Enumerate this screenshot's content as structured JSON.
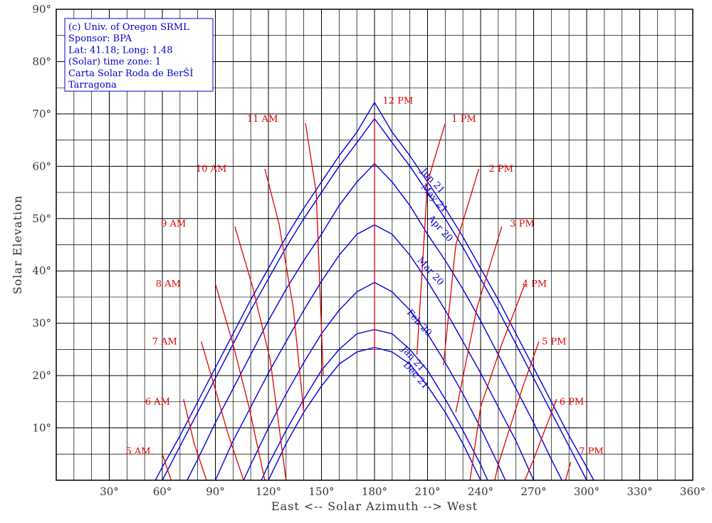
{
  "chart_data": {
    "type": "line",
    "title": "",
    "xlabel": "East <-- Solar Azimuth --> West",
    "ylabel": "Solar Elevation",
    "xlim": [
      0,
      360
    ],
    "ylim": [
      0,
      90
    ],
    "x_ticks": [
      "30°",
      "60°",
      "90°",
      "120°",
      "150°",
      "180°",
      "210°",
      "240°",
      "270°",
      "300°",
      "330°",
      "360°"
    ],
    "y_ticks": [
      "10°",
      "20°",
      "30°",
      "40°",
      "50°",
      "60°",
      "70°",
      "80°",
      "90°"
    ],
    "grid": true,
    "info_box": [
      "(c) Univ. of Oregon SRML",
      "Sponsor: BPA",
      "Lat: 41.18; Long: 1.48",
      "(Solar) time zone: 1",
      "Carta Solar Roda de BerŠÌ",
      "Tarragona"
    ],
    "colors": {
      "date_curves": "#0000dd",
      "hour_curves": "#e00000",
      "grid": "#000000"
    },
    "date_series": [
      {
        "name": "Jun 21",
        "label_at": [
          206,
          59
        ],
        "label_angle": 48,
        "x": [
          56,
          60,
          70,
          80,
          90,
          100,
          110,
          120,
          130,
          140,
          150,
          160,
          170,
          180,
          190,
          200,
          210,
          220,
          230,
          240,
          250,
          260,
          270,
          280,
          290,
          300,
          304
        ],
        "y": [
          0,
          2.5,
          8.5,
          15,
          21.5,
          28,
          34.5,
          40.5,
          46.5,
          52,
          57,
          62,
          66.5,
          72.2,
          66.5,
          62,
          57,
          52,
          46.5,
          40.5,
          34.5,
          28,
          21.5,
          15,
          8.5,
          2.5,
          0
        ]
      },
      {
        "name": "May 21",
        "label_at": [
          206,
          56
        ],
        "label_angle": 48,
        "x": [
          60,
          70,
          80,
          90,
          100,
          110,
          120,
          130,
          140,
          150,
          160,
          170,
          180,
          190,
          200,
          210,
          220,
          230,
          240,
          250,
          260,
          270,
          280,
          290,
          300
        ],
        "y": [
          0,
          6.5,
          13,
          19.5,
          26,
          32.5,
          38.5,
          44.5,
          50,
          55,
          60,
          64.5,
          69.1,
          64.5,
          60,
          55,
          50,
          44.5,
          38.5,
          32.5,
          26,
          19.5,
          13,
          6.5,
          0
        ]
      },
      {
        "name": "Apr 20",
        "label_at": [
          210,
          50
        ],
        "label_angle": 48,
        "x": [
          74,
          80,
          90,
          100,
          110,
          120,
          130,
          140,
          150,
          160,
          170,
          180,
          190,
          200,
          210,
          220,
          230,
          240,
          250,
          260,
          270,
          280,
          286
        ],
        "y": [
          0,
          4,
          11,
          17.5,
          24,
          30.5,
          36.5,
          42,
          47,
          52.5,
          57,
          60.5,
          57,
          52.5,
          47,
          42,
          36.5,
          30.5,
          24,
          17.5,
          11,
          4,
          0
        ]
      },
      {
        "name": "Mar 20",
        "label_at": [
          204,
          42
        ],
        "label_angle": 48,
        "x": [
          90,
          100,
          110,
          120,
          130,
          140,
          150,
          160,
          170,
          180,
          190,
          200,
          210,
          220,
          230,
          240,
          250,
          260,
          270
        ],
        "y": [
          0,
          7.5,
          14,
          20.5,
          26.5,
          32.5,
          38,
          43,
          47,
          48.8,
          47,
          43,
          38,
          32.5,
          26.5,
          20.5,
          14,
          7.5,
          0
        ]
      },
      {
        "name": "Feb 20",
        "label_at": [
          198,
          32
        ],
        "label_angle": 48,
        "x": [
          106,
          110,
          120,
          130,
          140,
          150,
          160,
          170,
          180,
          190,
          200,
          210,
          220,
          230,
          240,
          250,
          254
        ],
        "y": [
          0,
          3,
          10,
          16.5,
          22.5,
          28,
          32.5,
          36,
          37.8,
          36,
          32.5,
          28,
          22.5,
          16.5,
          10,
          3,
          0
        ]
      },
      {
        "name": "Jan 21",
        "label_at": [
          195,
          25
        ],
        "label_angle": 48,
        "x": [
          116,
          120,
          130,
          140,
          150,
          160,
          170,
          180,
          190,
          200,
          210,
          220,
          230,
          240,
          244
        ],
        "y": [
          0,
          3,
          9.5,
          15.5,
          21,
          25,
          28,
          28.8,
          28,
          25,
          21,
          15.5,
          9.5,
          3,
          0
        ]
      },
      {
        "name": "Dec 21",
        "label_at": [
          196,
          22
        ],
        "label_angle": 48,
        "x": [
          120,
          130,
          140,
          150,
          160,
          170,
          180,
          190,
          200,
          210,
          220,
          230,
          240
        ],
        "y": [
          0,
          7,
          13,
          18,
          22.2,
          24.5,
          25.4,
          24.5,
          22.2,
          18,
          13,
          7,
          0
        ]
      }
    ],
    "hour_series": [
      {
        "name": "5 AM",
        "label_at": [
          55,
          5.5
        ],
        "x": [
          60,
          65
        ],
        "y": [
          5,
          0
        ]
      },
      {
        "name": "6 AM",
        "label_at": [
          66,
          15
        ],
        "x": [
          72,
          78,
          85
        ],
        "y": [
          15.5,
          7,
          0
        ]
      },
      {
        "name": "7 AM",
        "label_at": [
          70,
          26.5
        ],
        "x": [
          82,
          89,
          97,
          106
        ],
        "y": [
          26.5,
          18.5,
          9,
          0
        ]
      },
      {
        "name": "8 AM",
        "label_at": [
          72,
          37.5
        ],
        "x": [
          90,
          100,
          109,
          118
        ],
        "y": [
          37.5,
          26,
          14,
          0
        ]
      },
      {
        "name": "9 AM",
        "label_at": [
          75,
          49
        ],
        "x": [
          101,
          111,
          121,
          130
        ],
        "y": [
          48.5,
          37,
          23,
          0
        ]
      },
      {
        "name": "10 AM",
        "label_at": [
          98,
          59.5
        ],
        "x": [
          118,
          126,
          134,
          140
        ],
        "y": [
          59.5,
          49,
          33,
          13
        ]
      },
      {
        "name": "11 AM",
        "label_at": [
          127,
          69
        ],
        "x": [
          141,
          147,
          151
        ],
        "y": [
          68.2,
          55,
          20
        ]
      },
      {
        "name": "12 PM",
        "label_at": [
          183,
          72.5
        ],
        "x": [
          180,
          180
        ],
        "y": [
          69.1,
          24
        ]
      },
      {
        "name": "1 PM",
        "label_at": [
          222,
          69
        ],
        "x": [
          220,
          210,
          204
        ],
        "y": [
          68.2,
          57,
          24
        ]
      },
      {
        "name": "2 PM",
        "label_at": [
          243,
          59.5
        ],
        "x": [
          239,
          226,
          219
        ],
        "y": [
          59.5,
          45,
          22
        ]
      },
      {
        "name": "3 PM",
        "label_at": [
          255,
          49
        ],
        "x": [
          252,
          238,
          226
        ],
        "y": [
          48.5,
          33,
          13
        ]
      },
      {
        "name": "4 PM",
        "label_at": [
          262,
          37.5
        ],
        "x": [
          265,
          252,
          240,
          234
        ],
        "y": [
          37.5,
          26,
          14,
          0
        ]
      },
      {
        "name": "5 PM",
        "label_at": [
          273,
          26.5
        ],
        "x": [
          273,
          264,
          250,
          248
        ],
        "y": [
          26.5,
          18,
          3,
          0
        ]
      },
      {
        "name": "6 PM",
        "label_at": [
          283,
          15
        ],
        "x": [
          283,
          270,
          265
        ],
        "y": [
          15.5,
          4,
          0
        ]
      },
      {
        "name": "7 PM",
        "label_at": [
          294,
          5.5
        ],
        "x": [
          291,
          288
        ],
        "y": [
          3.5,
          0
        ]
      }
    ]
  }
}
